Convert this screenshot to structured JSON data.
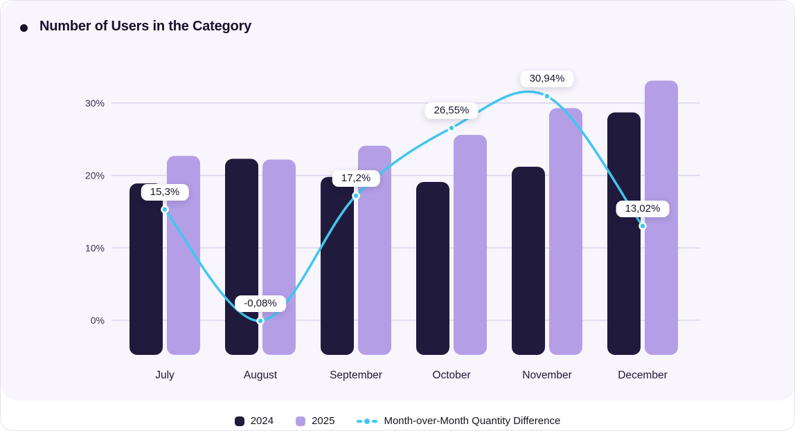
{
  "title": "Number of Users in the Category",
  "colors": {
    "bar_2024": "#201a3c",
    "bar_2025": "#b49fe6",
    "line": "#41c7ee",
    "card_bg": "#f8f5fd",
    "grid": "#dcd6ec",
    "pill_bg": "#ffffff",
    "title_text": "#17122b"
  },
  "chart_data": {
    "type": "bar+line combo",
    "title": "Number of Users in the Category",
    "categories": [
      "July",
      "August",
      "September",
      "October",
      "November",
      "December"
    ],
    "series": [
      {
        "name": "2024",
        "type": "bar",
        "values": [
          18.9,
          22.3,
          19.8,
          19.1,
          21.2,
          28.7
        ]
      },
      {
        "name": "2025",
        "type": "bar",
        "values": [
          22.7,
          22.2,
          24.1,
          25.6,
          29.3,
          33.1
        ]
      },
      {
        "name": "Month-over-Month Quantity Difference",
        "type": "line",
        "values": [
          15.3,
          -0.08,
          17.2,
          26.55,
          30.94,
          13.02
        ],
        "labels": [
          "15,3%",
          "-0,08%",
          "17,2%",
          "26,55%",
          "30,94%",
          "13,02%"
        ]
      }
    ],
    "y_ticks": [
      "0%",
      "10%",
      "20%",
      "30%"
    ],
    "y_tick_values": [
      0,
      10,
      20,
      30
    ],
    "ylim": [
      -5,
      34.6
    ],
    "grid": "horizontal-only",
    "legend_position": "bottom-center"
  },
  "legend": {
    "items": [
      {
        "label": "2024"
      },
      {
        "label": "2025"
      },
      {
        "label": "Month-over-Month Quantity Difference"
      }
    ]
  }
}
